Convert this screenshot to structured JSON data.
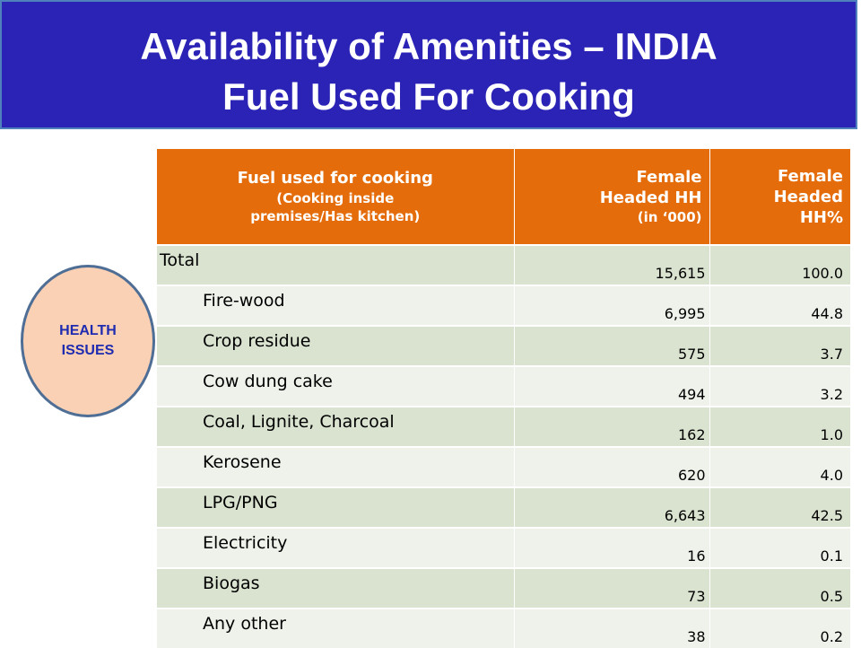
{
  "title": {
    "line1": "Availability of Amenities – INDIA",
    "line2": "Fuel Used For Cooking"
  },
  "colors": {
    "banner": "#2a23b5",
    "header": "#e46c0a",
    "row_dark": "#d9e3cf",
    "row_light": "#eef2ea",
    "circle_fill": "#fad1b4",
    "circle_text": "#1f2bb0"
  },
  "callout": {
    "line1": "HEALTH",
    "line2": "ISSUES"
  },
  "table": {
    "headers": {
      "col1_line1": "Fuel used for cooking",
      "col1_line2": "(Cooking inside",
      "col1_line3": "premises/Has kitchen)",
      "col2_line1": "Female",
      "col2_line2": "Headed HH",
      "col2_line3": "(in ‘000)",
      "col3_line1": "Female",
      "col3_line2": "Headed",
      "col3_line3": "HH%"
    },
    "rows": [
      {
        "label": "Total",
        "hh": "15,615",
        "pct": "100.0"
      },
      {
        "label": "Fire-wood",
        "hh": "6,995",
        "pct": "44.8"
      },
      {
        "label": "Crop residue",
        "hh": "575",
        "pct": "3.7"
      },
      {
        "label": "Cow dung cake",
        "hh": "494",
        "pct": "3.2"
      },
      {
        "label": "Coal, Lignite, Charcoal",
        "hh": "162",
        "pct": "1.0"
      },
      {
        "label": "Kerosene",
        "hh": "620",
        "pct": "4.0"
      },
      {
        "label": "LPG/PNG",
        "hh": "6,643",
        "pct": "42.5"
      },
      {
        "label": "Electricity",
        "hh": "16",
        "pct": "0.1"
      },
      {
        "label": "Biogas",
        "hh": "73",
        "pct": "0.5"
      },
      {
        "label": "Any other",
        "hh": "38",
        "pct": "0.2"
      }
    ]
  }
}
